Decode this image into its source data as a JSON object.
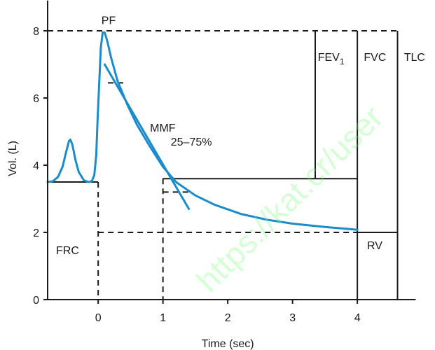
{
  "chart_data": {
    "type": "line",
    "title": "",
    "xlabel": "Time (sec)",
    "ylabel": "Vol. (L)",
    "xlim": [
      -0.78,
      4.9
    ],
    "ylim": [
      0,
      8.9
    ],
    "x_ticks": [
      0,
      1,
      2,
      3,
      4
    ],
    "y_ticks": [
      0,
      2,
      4,
      6,
      8
    ],
    "grid": false,
    "legend": "none",
    "series": [
      {
        "points": [
          [
            -0.78,
            3.5
          ],
          [
            -0.7,
            3.52
          ],
          [
            -0.62,
            3.65
          ],
          [
            -0.55,
            3.95
          ],
          [
            -0.5,
            4.35
          ],
          [
            -0.45,
            4.72
          ],
          [
            -0.43,
            4.76
          ],
          [
            -0.4,
            4.62
          ],
          [
            -0.35,
            4.15
          ],
          [
            -0.3,
            3.8
          ],
          [
            -0.22,
            3.55
          ],
          [
            -0.15,
            3.5
          ],
          [
            -0.1,
            3.52
          ],
          [
            -0.06,
            3.7
          ],
          [
            -0.03,
            4.3
          ],
          [
            -0.01,
            5.3
          ],
          [
            0.02,
            6.6
          ],
          [
            0.04,
            7.5
          ],
          [
            0.07,
            7.95
          ],
          [
            0.1,
            7.95
          ],
          [
            0.14,
            7.7
          ],
          [
            0.2,
            7.2
          ],
          [
            0.3,
            6.5
          ],
          [
            0.45,
            5.8
          ],
          [
            0.6,
            5.2
          ],
          [
            0.8,
            4.55
          ],
          [
            1.0,
            3.95
          ],
          [
            1.2,
            3.5
          ],
          [
            1.5,
            3.1
          ],
          [
            1.8,
            2.82
          ],
          [
            2.2,
            2.55
          ],
          [
            2.6,
            2.38
          ],
          [
            3.0,
            2.26
          ],
          [
            3.5,
            2.16
          ],
          [
            4.0,
            2.08
          ]
        ],
        "color": "#1a8ccc"
      },
      {
        "points": [
          [
            0.1,
            7.0
          ],
          [
            1.4,
            2.7
          ]
        ],
        "color": "#1a8ccc"
      }
    ],
    "annotations": [
      "PF",
      "MMF",
      "25–75%",
      "FEV1",
      "FVC",
      "TLC",
      "FRC",
      "RV"
    ],
    "watermark": "https://kat.cr/user"
  }
}
